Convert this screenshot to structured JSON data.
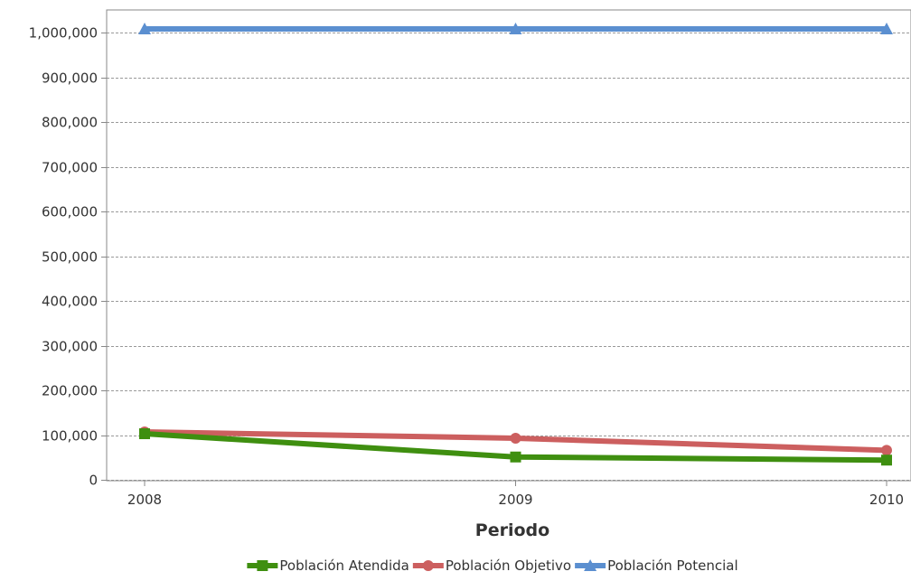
{
  "chart_data": {
    "type": "line",
    "title": "",
    "xlabel": "Periodo",
    "ylabel": "",
    "categories": [
      "2008",
      "2009",
      "2010"
    ],
    "ylim": [
      0,
      1000000
    ],
    "yticks": [
      0,
      100000,
      200000,
      300000,
      400000,
      500000,
      600000,
      700000,
      800000,
      900000,
      1000000
    ],
    "ytick_labels": [
      "0",
      "100,000",
      "200,000",
      "300,000",
      "400,000",
      "500,000",
      "600,000",
      "700,000",
      "800,000",
      "900,000",
      "1,000,000"
    ],
    "grid": true,
    "legend_position": "bottom",
    "series": [
      {
        "name": "Población Atendida",
        "values": [
          103000,
          51000,
          44000
        ],
        "color": "#3f8f10",
        "marker": "square"
      },
      {
        "name": "Población Objetivo",
        "values": [
          107000,
          93000,
          66000
        ],
        "color": "#cc5f5f",
        "marker": "circle"
      },
      {
        "name": "Población Potencial",
        "values": [
          1008000,
          1008000,
          1008000
        ],
        "color": "#5b8fd0",
        "marker": "triangle"
      }
    ]
  }
}
